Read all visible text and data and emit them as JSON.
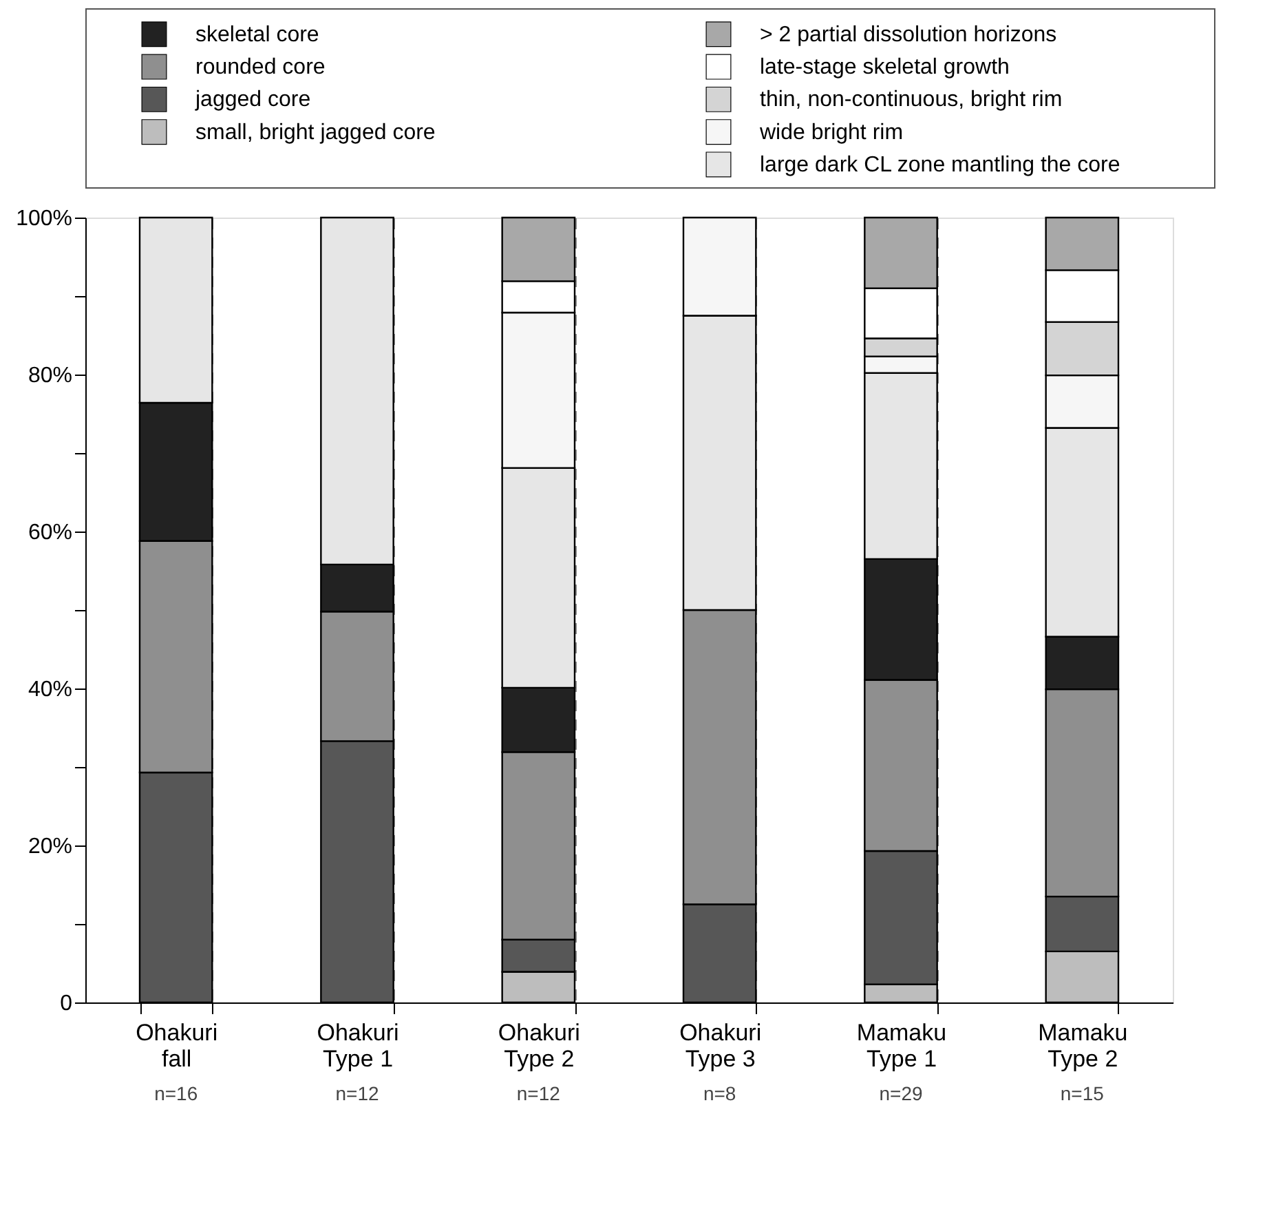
{
  "chart_data": {
    "type": "bar",
    "stacked": true,
    "categories": [
      "Ohakuri fall",
      "Ohakuri Type 1",
      "Ohakuri Type 2",
      "Ohakuri Type 3",
      "Mamaku Type 1",
      "Mamaku Type 2"
    ],
    "series": [
      {
        "name": "small, bright jagged core",
        "color": "#bdbdbd",
        "values": [
          null,
          null,
          3.9,
          null,
          2.3,
          6.5
        ]
      },
      {
        "name": "jagged core",
        "color": "#575757",
        "values": [
          29.3,
          33.3,
          4.1,
          12.5,
          17.0,
          7.0
        ]
      },
      {
        "name": "rounded core",
        "color": "#8f8f8f",
        "values": [
          29.5,
          16.5,
          23.9,
          37.5,
          21.8,
          26.4
        ]
      },
      {
        "name": "skeletal core",
        "color": "#222222",
        "values": [
          17.6,
          6.0,
          8.2,
          null,
          15.4,
          6.7
        ]
      },
      {
        "name": "large dark CL zone mantling the core",
        "color": "#e6e6e6",
        "values": [
          23.6,
          44.2,
          28.0,
          37.5,
          23.7,
          26.6
        ]
      },
      {
        "name": "wide bright rim",
        "color": "#f6f6f6",
        "values": [
          null,
          null,
          19.8,
          12.5,
          2.1,
          6.7
        ]
      },
      {
        "name": "thin, non-continuous, bright rim",
        "color": "#d4d4d4",
        "values": [
          null,
          null,
          null,
          null,
          2.3,
          6.8
        ]
      },
      {
        "name": "late-stage skeletal growth",
        "color": "#ffffff",
        "values": [
          null,
          null,
          4.0,
          null,
          6.4,
          6.6
        ]
      },
      {
        "name": "> 2 partial dissolution horizons",
        "color": "#a8a8a8",
        "values": [
          null,
          null,
          8.1,
          null,
          9.0,
          6.7
        ]
      }
    ],
    "ylim": [
      0,
      100
    ],
    "yticks": [
      {
        "value": 0,
        "label": "0"
      },
      {
        "value": 10,
        "label": null
      },
      {
        "value": 20,
        "label": "20%"
      },
      {
        "value": 30,
        "label": null
      },
      {
        "value": 40,
        "label": "40%"
      },
      {
        "value": 50,
        "label": null
      },
      {
        "value": 60,
        "label": "60%"
      },
      {
        "value": 70,
        "label": null
      },
      {
        "value": 80,
        "label": "80%"
      },
      {
        "value": 90,
        "label": null
      },
      {
        "value": 100,
        "label": "100%"
      }
    ],
    "grid": "x",
    "legend": "top",
    "annotations": [
      "n=16",
      "n=12",
      "n=12",
      "n=8",
      "n=29",
      "n=15"
    ]
  }
}
